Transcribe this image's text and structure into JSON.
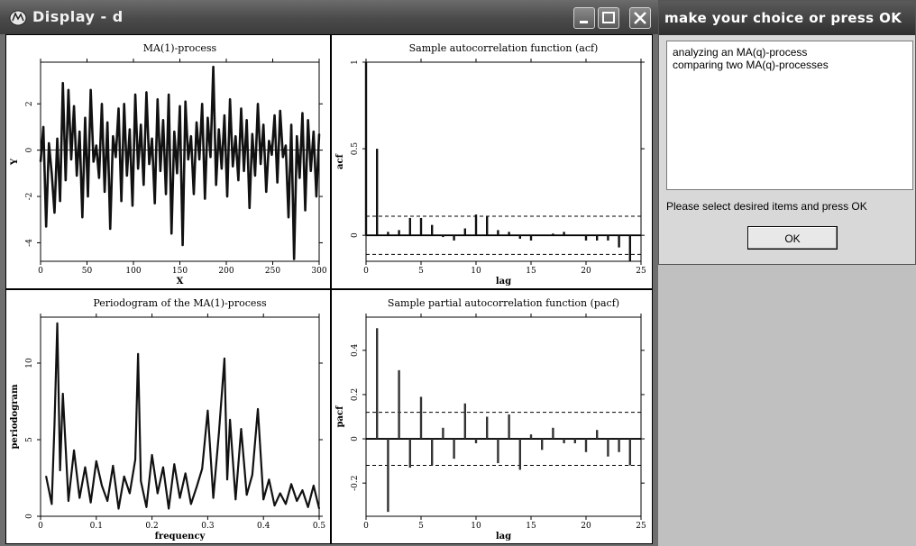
{
  "display_window": {
    "title": "Display - d",
    "controls": [
      "minimize",
      "maximize",
      "close"
    ],
    "panels": [
      {
        "id": "ma1",
        "title": "MA(1)-process",
        "xlabel": "X",
        "ylabel": "Y",
        "xticks": [
          "0",
          "50",
          "100",
          "150",
          "200",
          "250",
          "300"
        ],
        "yticks": [
          "-4",
          "-2",
          "0",
          "2"
        ]
      },
      {
        "id": "acf",
        "title": "Sample autocorrelation function (acf)",
        "xlabel": "lag",
        "ylabel": "acf",
        "xticks": [
          "0",
          "5",
          "10",
          "15",
          "20",
          "25"
        ],
        "yticks": [
          "0",
          "0.5",
          "1"
        ]
      },
      {
        "id": "periodogram",
        "title": "Periodogram of the MA(1)-process",
        "xlabel": "frequency",
        "ylabel": "periodogram",
        "xticks": [
          "0",
          "0.1",
          "0.2",
          "0.3",
          "0.4",
          "0.5"
        ],
        "yticks": [
          "0",
          "5",
          "10"
        ]
      },
      {
        "id": "pacf",
        "title": "Sample partial autocorrelation function (pacf)",
        "xlabel": "lag",
        "ylabel": "pacf",
        "xticks": [
          "0",
          "5",
          "10",
          "15",
          "20",
          "25"
        ],
        "yticks": [
          "-0.2",
          "0",
          "0.2",
          "0.4"
        ]
      }
    ]
  },
  "chart_data": [
    {
      "type": "line",
      "title": "MA(1)-process",
      "xlabel": "X",
      "ylabel": "Y",
      "xlim": [
        0,
        300
      ],
      "ylim": [
        -4.8,
        3.8
      ],
      "x": [
        0,
        3,
        6,
        9,
        12,
        15,
        18,
        21,
        24,
        27,
        30,
        33,
        36,
        39,
        42,
        45,
        48,
        51,
        54,
        57,
        60,
        63,
        66,
        69,
        72,
        75,
        78,
        81,
        84,
        87,
        90,
        93,
        96,
        99,
        102,
        105,
        108,
        111,
        114,
        117,
        120,
        123,
        126,
        129,
        132,
        135,
        138,
        141,
        144,
        147,
        150,
        153,
        156,
        159,
        162,
        165,
        168,
        171,
        174,
        177,
        180,
        183,
        186,
        189,
        192,
        195,
        198,
        201,
        204,
        207,
        210,
        213,
        216,
        219,
        222,
        225,
        228,
        231,
        234,
        237,
        240,
        243,
        246,
        249,
        252,
        255,
        258,
        261,
        264,
        267,
        270,
        273,
        276,
        279,
        282,
        285,
        288,
        291,
        294,
        297,
        300
      ],
      "y": [
        -0.5,
        1.0,
        -3.3,
        0.3,
        -1.0,
        -2.7,
        0.5,
        -2.2,
        2.9,
        -1.3,
        2.6,
        -0.4,
        1.9,
        -1.1,
        0.8,
        -2.9,
        1.4,
        -2.0,
        2.6,
        -0.5,
        0.2,
        -1.2,
        2.0,
        -1.8,
        1.2,
        -3.4,
        0.6,
        -0.3,
        1.8,
        -2.2,
        2.0,
        -1.1,
        0.9,
        -2.4,
        2.4,
        -0.8,
        1.1,
        -1.5,
        2.5,
        -0.6,
        0.5,
        -2.3,
        2.2,
        -0.9,
        1.3,
        -1.9,
        2.4,
        -3.6,
        0.8,
        -1.0,
        1.9,
        -4.1,
        2.1,
        -0.4,
        0.6,
        -1.9,
        1.2,
        -0.4,
        2.0,
        -2.1,
        1.4,
        -0.3,
        3.6,
        -1.5,
        0.9,
        -0.8,
        1.5,
        -2.0,
        2.2,
        -0.7,
        0.6,
        -1.3,
        1.8,
        -0.9,
        1.3,
        -2.5,
        0.7,
        -1.1,
        2.0,
        -0.6,
        1.1,
        -1.8,
        0.4,
        -0.2,
        1.5,
        -1.4,
        1.7,
        -0.3,
        0.2,
        -2.9,
        1.1,
        -4.7,
        0.6,
        -1.2,
        1.6,
        -2.6,
        1.3,
        -0.9,
        0.8,
        -2.0,
        0.7
      ]
    },
    {
      "type": "bar",
      "title": "Sample autocorrelation function (acf)",
      "xlabel": "lag",
      "ylabel": "acf",
      "xlim": [
        0,
        25
      ],
      "ylim": [
        -0.15,
        1.0
      ],
      "x": [
        0,
        1,
        2,
        3,
        4,
        5,
        6,
        7,
        8,
        9,
        10,
        11,
        12,
        13,
        14,
        15,
        16,
        17,
        18,
        19,
        20,
        21,
        22,
        23,
        24
      ],
      "values": [
        1.0,
        0.5,
        0.02,
        0.03,
        0.1,
        0.1,
        0.06,
        -0.01,
        -0.03,
        0.04,
        0.12,
        0.11,
        0.03,
        0.02,
        -0.02,
        -0.03,
        0.0,
        0.01,
        0.02,
        0.0,
        -0.03,
        -0.03,
        -0.03,
        -0.07,
        -0.15
      ],
      "confidence_band": [
        -0.11,
        0.11
      ]
    },
    {
      "type": "line",
      "title": "Periodogram of the MA(1)-process",
      "xlabel": "frequency",
      "ylabel": "periodogram",
      "xlim": [
        0,
        0.5
      ],
      "ylim": [
        0,
        13
      ],
      "x": [
        0.01,
        0.02,
        0.025,
        0.03,
        0.035,
        0.04,
        0.05,
        0.06,
        0.07,
        0.08,
        0.09,
        0.1,
        0.11,
        0.12,
        0.13,
        0.14,
        0.15,
        0.16,
        0.17,
        0.175,
        0.18,
        0.19,
        0.2,
        0.21,
        0.22,
        0.23,
        0.24,
        0.25,
        0.26,
        0.27,
        0.28,
        0.29,
        0.3,
        0.31,
        0.32,
        0.33,
        0.335,
        0.34,
        0.35,
        0.36,
        0.37,
        0.38,
        0.39,
        0.4,
        0.41,
        0.42,
        0.43,
        0.44,
        0.45,
        0.46,
        0.47,
        0.48,
        0.49,
        0.5
      ],
      "y": [
        2.6,
        0.8,
        6.0,
        12.6,
        3.0,
        8.0,
        1.0,
        4.3,
        1.2,
        3.2,
        0.9,
        3.6,
        2.0,
        1.0,
        3.3,
        0.5,
        2.6,
        1.5,
        3.7,
        10.6,
        2.3,
        0.6,
        4.0,
        1.5,
        3.2,
        0.5,
        3.4,
        1.2,
        2.8,
        0.8,
        1.9,
        3.1,
        6.9,
        1.2,
        5.4,
        10.3,
        2.4,
        6.3,
        1.1,
        5.7,
        1.4,
        2.7,
        7.0,
        1.1,
        2.4,
        0.7,
        1.5,
        0.8,
        2.1,
        1.0,
        1.7,
        0.6,
        2.0,
        0.5
      ]
    },
    {
      "type": "bar",
      "title": "Sample partial autocorrelation function (pacf)",
      "xlabel": "lag",
      "ylabel": "pacf",
      "xlim": [
        0,
        25
      ],
      "ylim": [
        -0.35,
        0.55
      ],
      "x": [
        1,
        2,
        3,
        4,
        5,
        6,
        7,
        8,
        9,
        10,
        11,
        12,
        13,
        14,
        15,
        16,
        17,
        18,
        19,
        20,
        21,
        22,
        23,
        24
      ],
      "values": [
        0.5,
        -0.33,
        0.31,
        -0.13,
        0.19,
        -0.12,
        0.05,
        -0.09,
        0.16,
        -0.02,
        0.1,
        -0.11,
        0.11,
        -0.14,
        0.02,
        -0.05,
        0.05,
        -0.02,
        -0.02,
        -0.06,
        0.04,
        -0.08,
        -0.06,
        -0.12
      ],
      "confidence_band": [
        -0.12,
        0.12
      ]
    }
  ],
  "choice_dialog": {
    "title": "make your choice  or  press OK",
    "items": [
      "analyzing an MA(q)-process",
      "comparing two MA(q)-processes"
    ],
    "instruction": "Please select desired items and press OK",
    "ok_label": "OK"
  }
}
